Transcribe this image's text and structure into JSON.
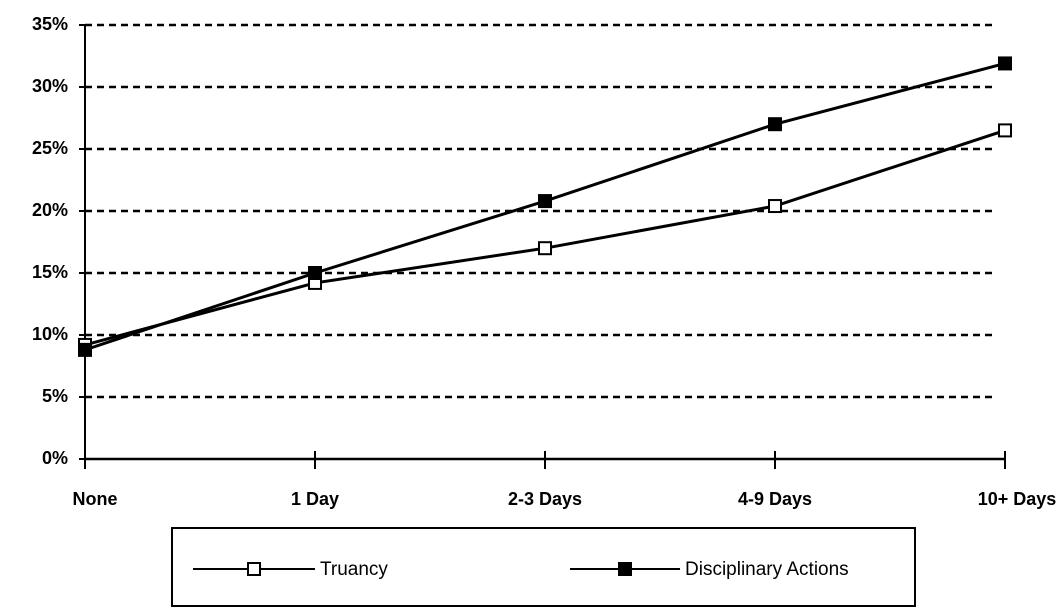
{
  "chart_data": {
    "type": "line",
    "categories": [
      "None",
      "1 Day",
      "2-3 Days",
      "4-9 Days",
      "10+ Days"
    ],
    "series": [
      {
        "name": "Truancy",
        "color": "#000000",
        "marker_fill": "#ffffff",
        "values": [
          9.2,
          14.2,
          17.0,
          20.4,
          26.5
        ]
      },
      {
        "name": "Disciplinary Actions",
        "color": "#000000",
        "marker_fill": "#000000",
        "values": [
          8.8,
          15.0,
          20.8,
          27.0,
          31.9
        ]
      }
    ],
    "ylim": [
      0,
      35
    ],
    "yticks": [
      {
        "value": 0,
        "label": "0%"
      },
      {
        "value": 5,
        "label": "5%"
      },
      {
        "value": 10,
        "label": "10%"
      },
      {
        "value": 15,
        "label": "15%"
      },
      {
        "value": 20,
        "label": "20%"
      },
      {
        "value": 25,
        "label": "25%"
      },
      {
        "value": 30,
        "label": "30%"
      },
      {
        "value": 35,
        "label": "35%"
      }
    ],
    "grid": true,
    "legend": "bottom"
  }
}
